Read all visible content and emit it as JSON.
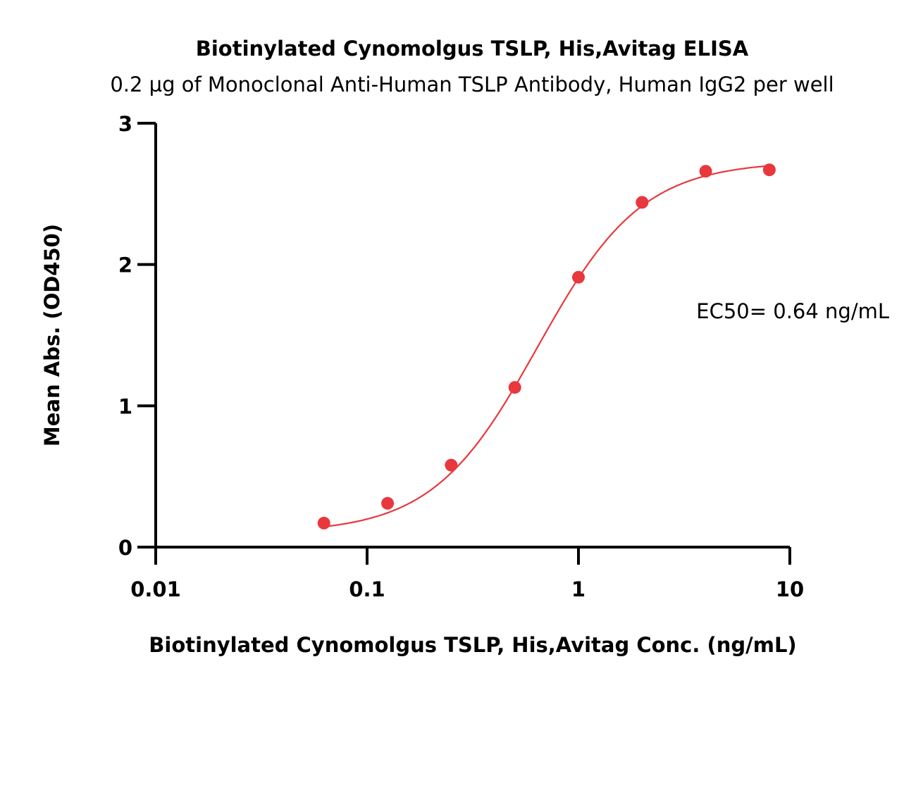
{
  "chart_data": {
    "type": "scatter",
    "title": "Biotinylated Cynomolgus TSLP, His,Avitag ELISA",
    "subtitle": "0.2 µg of Monoclonal Anti-Human TSLP Antibody, Human IgG2 per well",
    "xlabel": "Biotinylated Cynomolgus TSLP, His,Avitag Conc. (ng/mL)",
    "ylabel": "Mean Abs. (OD450)",
    "x_scale": "log",
    "xlim": [
      0.01,
      10
    ],
    "ylim": [
      0,
      3
    ],
    "x_ticks": [
      0.01,
      0.1,
      1,
      10
    ],
    "x_tick_labels": [
      "0.01",
      "0.1",
      "1",
      "10"
    ],
    "y_ticks": [
      0,
      1,
      2,
      3
    ],
    "y_tick_labels": [
      "0",
      "1",
      "2",
      "3"
    ],
    "grid": false,
    "legend": "none",
    "series": [
      {
        "x": [
          0.0625,
          0.125,
          0.25,
          0.5,
          1,
          2,
          4,
          8
        ],
        "y": [
          0.17,
          0.31,
          0.58,
          1.13,
          1.91,
          2.44,
          2.66,
          2.67
        ],
        "color": "#e8383d",
        "fit": {
          "model": "4PL",
          "bottom": 0.1,
          "top": 2.73,
          "ec50": 0.64,
          "hill": 1.75,
          "color": "#e8383d"
        }
      }
    ],
    "annotations": [
      {
        "text": "EC50= 0.64 ng/mL"
      }
    ]
  }
}
